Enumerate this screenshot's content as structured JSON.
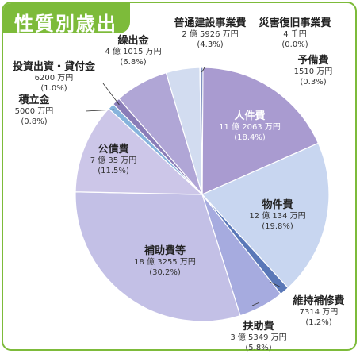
{
  "title": "性質別歳出",
  "chart_data": {
    "type": "pie",
    "slices": [
      {
        "name": "人件費",
        "amount": "11 億 2063 万円",
        "percent": "(18.4%)",
        "value": 18.4,
        "color": "#a99bd0"
      },
      {
        "name": "物件費",
        "amount": "12 億 134 万円",
        "percent": "(19.8%)",
        "value": 19.8,
        "color": "#c8d6f0"
      },
      {
        "name": "維持補修費",
        "amount": "7314 万円",
        "percent": "(1.2%)",
        "value": 1.2,
        "color": "#5a78b8"
      },
      {
        "name": "扶助費",
        "amount": "3 億 5349 万円",
        "percent": "(5.8%)",
        "value": 5.8,
        "color": "#a6abdf"
      },
      {
        "name": "補助費等",
        "amount": "18 億 3255 万円",
        "percent": "(30.2%)",
        "value": 30.2,
        "color": "#c3c0e6"
      },
      {
        "name": "公債費",
        "amount": "7 億 35 万円",
        "percent": "(11.5%)",
        "value": 11.5,
        "color": "#ccc6e8"
      },
      {
        "name": "積立金",
        "amount": "5000 万円",
        "percent": "(0.8%)",
        "value": 0.8,
        "color": "#86b3dc"
      },
      {
        "name": "投資出資・貸付金",
        "amount": "6200 万円",
        "percent": "(1.0%)",
        "value": 1.0,
        "color": "#8a7db8"
      },
      {
        "name": "繰出金",
        "amount": "4 億 1015 万円",
        "percent": "(6.8%)",
        "value": 6.8,
        "color": "#b0a6d6"
      },
      {
        "name": "普通建設事業費",
        "amount": "2 億 5926 万円",
        "percent": "(4.3%)",
        "value": 4.3,
        "color": "#d2dcf0"
      },
      {
        "name": "災害復旧事業費",
        "amount": "4 千円",
        "percent": "(0.0%)",
        "value": 0.0,
        "color": "#b0b0b0"
      },
      {
        "name": "予備費",
        "amount": "1510 万円",
        "percent": "(0.3%)",
        "value": 0.3,
        "color": "#7f90c0"
      }
    ]
  }
}
